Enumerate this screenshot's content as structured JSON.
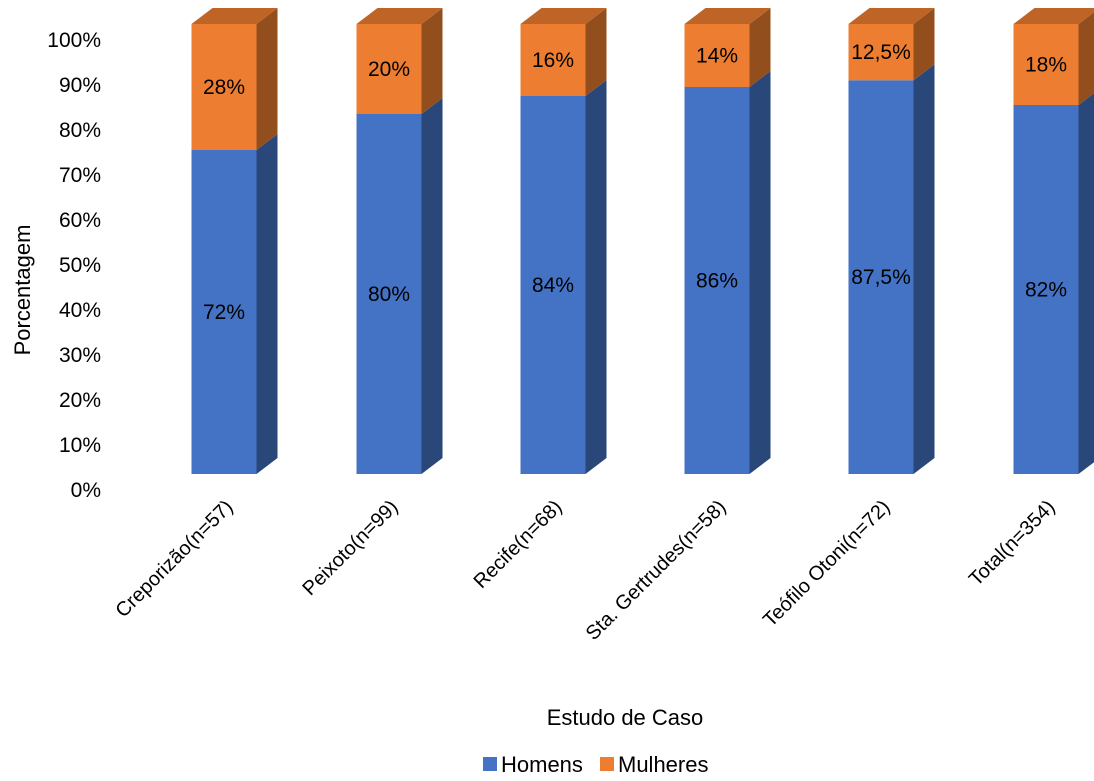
{
  "chart_data": {
    "type": "bar",
    "stacked": true,
    "three_d": true,
    "title": "",
    "xlabel": "Estudo de Caso",
    "ylabel": "Porcentagem",
    "ylim": [
      0,
      100
    ],
    "yticks": [
      0,
      10,
      20,
      30,
      40,
      50,
      60,
      70,
      80,
      90,
      100
    ],
    "ytick_labels": [
      "0%",
      "10%",
      "20%",
      "30%",
      "40%",
      "50%",
      "60%",
      "70%",
      "80%",
      "90%",
      "100%"
    ],
    "grid": false,
    "legend_position": "bottom",
    "categories": [
      "Creporizão(n=57)",
      "Peixoto(n=99)",
      "Recife(n=68)",
      "Sta. Gertrudes(n=58)",
      "Teófilo Otoni(n=72)",
      "Total(n=354)"
    ],
    "series": [
      {
        "name": "Homens",
        "color": "#4472C4",
        "values": [
          72,
          80,
          84,
          86,
          87.5,
          82
        ],
        "labels": [
          "72%",
          "80%",
          "84%",
          "86%",
          "87,5%",
          "82%"
        ]
      },
      {
        "name": "Mulheres",
        "color": "#ED7D31",
        "values": [
          28,
          20,
          16,
          14,
          12.5,
          18
        ],
        "labels": [
          "28%",
          "20%",
          "16%",
          "14%",
          "12,5%",
          "18%"
        ]
      }
    ]
  }
}
